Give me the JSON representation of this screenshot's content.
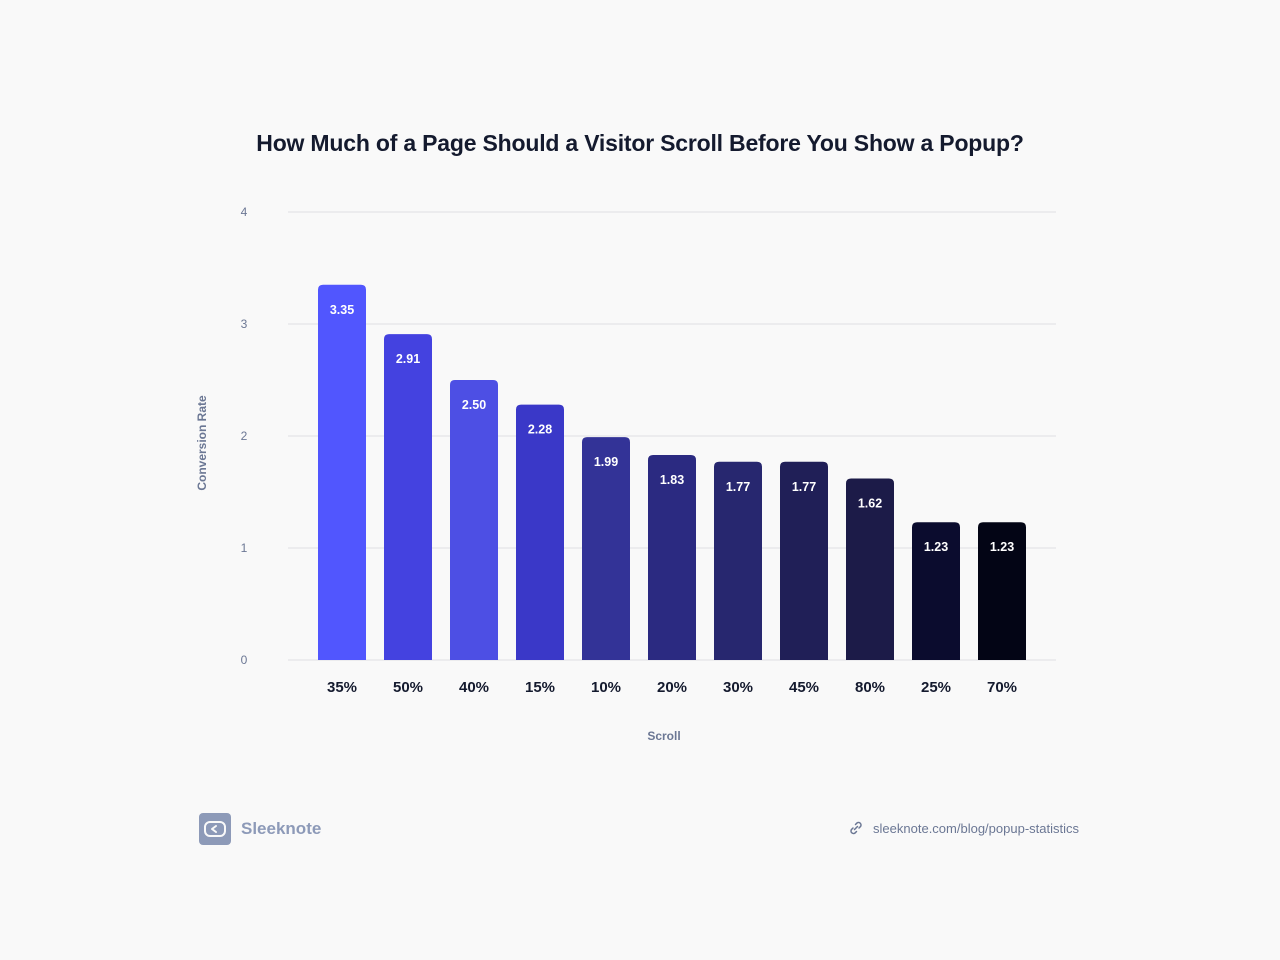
{
  "chart_data": {
    "type": "bar",
    "title": "How Much of a Page Should a Visitor Scroll Before You Show a Popup?",
    "xlabel": "Scroll",
    "ylabel": "Conversion Rate",
    "ylim": [
      0,
      4
    ],
    "yticks": [
      "0",
      "1",
      "2",
      "3",
      "4"
    ],
    "grid": true,
    "categories": [
      "35%",
      "50%",
      "40%",
      "15%",
      "10%",
      "20%",
      "30%",
      "45%",
      "80%",
      "25%",
      "70%"
    ],
    "values": [
      3.35,
      2.91,
      2.5,
      2.28,
      1.99,
      1.83,
      1.77,
      1.77,
      1.62,
      1.23,
      1.23
    ],
    "value_labels": [
      "3.35",
      "2.91",
      "2.50",
      "2.28",
      "1.99",
      "1.83",
      "1.77",
      "1.77",
      "1.62",
      "1.23",
      "1.23"
    ],
    "bar_colors": [
      "#5156fe",
      "#4442e0",
      "#4d4fe4",
      "#3a38c8",
      "#333397",
      "#2b2a81",
      "#27276f",
      "#201f57",
      "#1c1b48",
      "#0b0c2e",
      "#030515"
    ]
  },
  "footer": {
    "brand": "Sleeknote",
    "brand_icon": "sleeknote-logo-icon",
    "link_icon": "link-icon",
    "url": "sleeknote.com/blog/popup-statistics"
  },
  "colors": {
    "background": "#f9f9f9",
    "title": "#141a2e",
    "grid": "#dedee3",
    "axis_text": "#6b7794",
    "brand": "#8d9ab8"
  }
}
